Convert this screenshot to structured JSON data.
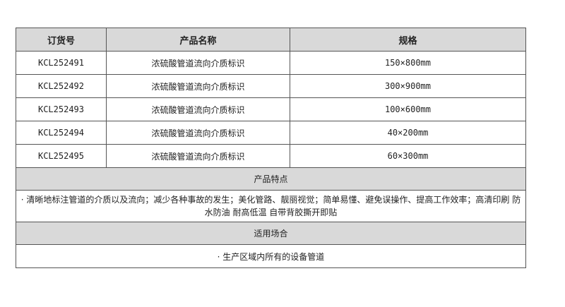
{
  "headers": {
    "code": "订货号",
    "name": "产品名称",
    "spec": "规格"
  },
  "rows": [
    {
      "code": "KCL252491",
      "name": "浓硫酸管道流向介质标识",
      "spec": "150×800mm"
    },
    {
      "code": "KCL252492",
      "name": "浓硫酸管道流向介质标识",
      "spec": "300×900mm"
    },
    {
      "code": "KCL252493",
      "name": "浓硫酸管道流向介质标识",
      "spec": "100×600mm"
    },
    {
      "code": "KCL252494",
      "name": "浓硫酸管道流向介质标识",
      "spec": "40×200mm"
    },
    {
      "code": "KCL252495",
      "name": "浓硫酸管道流向介质标识",
      "spec": "60×300mm"
    }
  ],
  "features": {
    "title": "产品特点",
    "text": "· 清晰地标注管道的介质以及流向；减少各种事故的发生；美化管路、靓丽视觉；简单易懂、避免误操作、提高工作效率；高清印刷 防水防油 耐高低温 自带背胶撕开即贴"
  },
  "usage": {
    "title": "适用场合",
    "text": "· 生产区域内所有的设备管道"
  }
}
